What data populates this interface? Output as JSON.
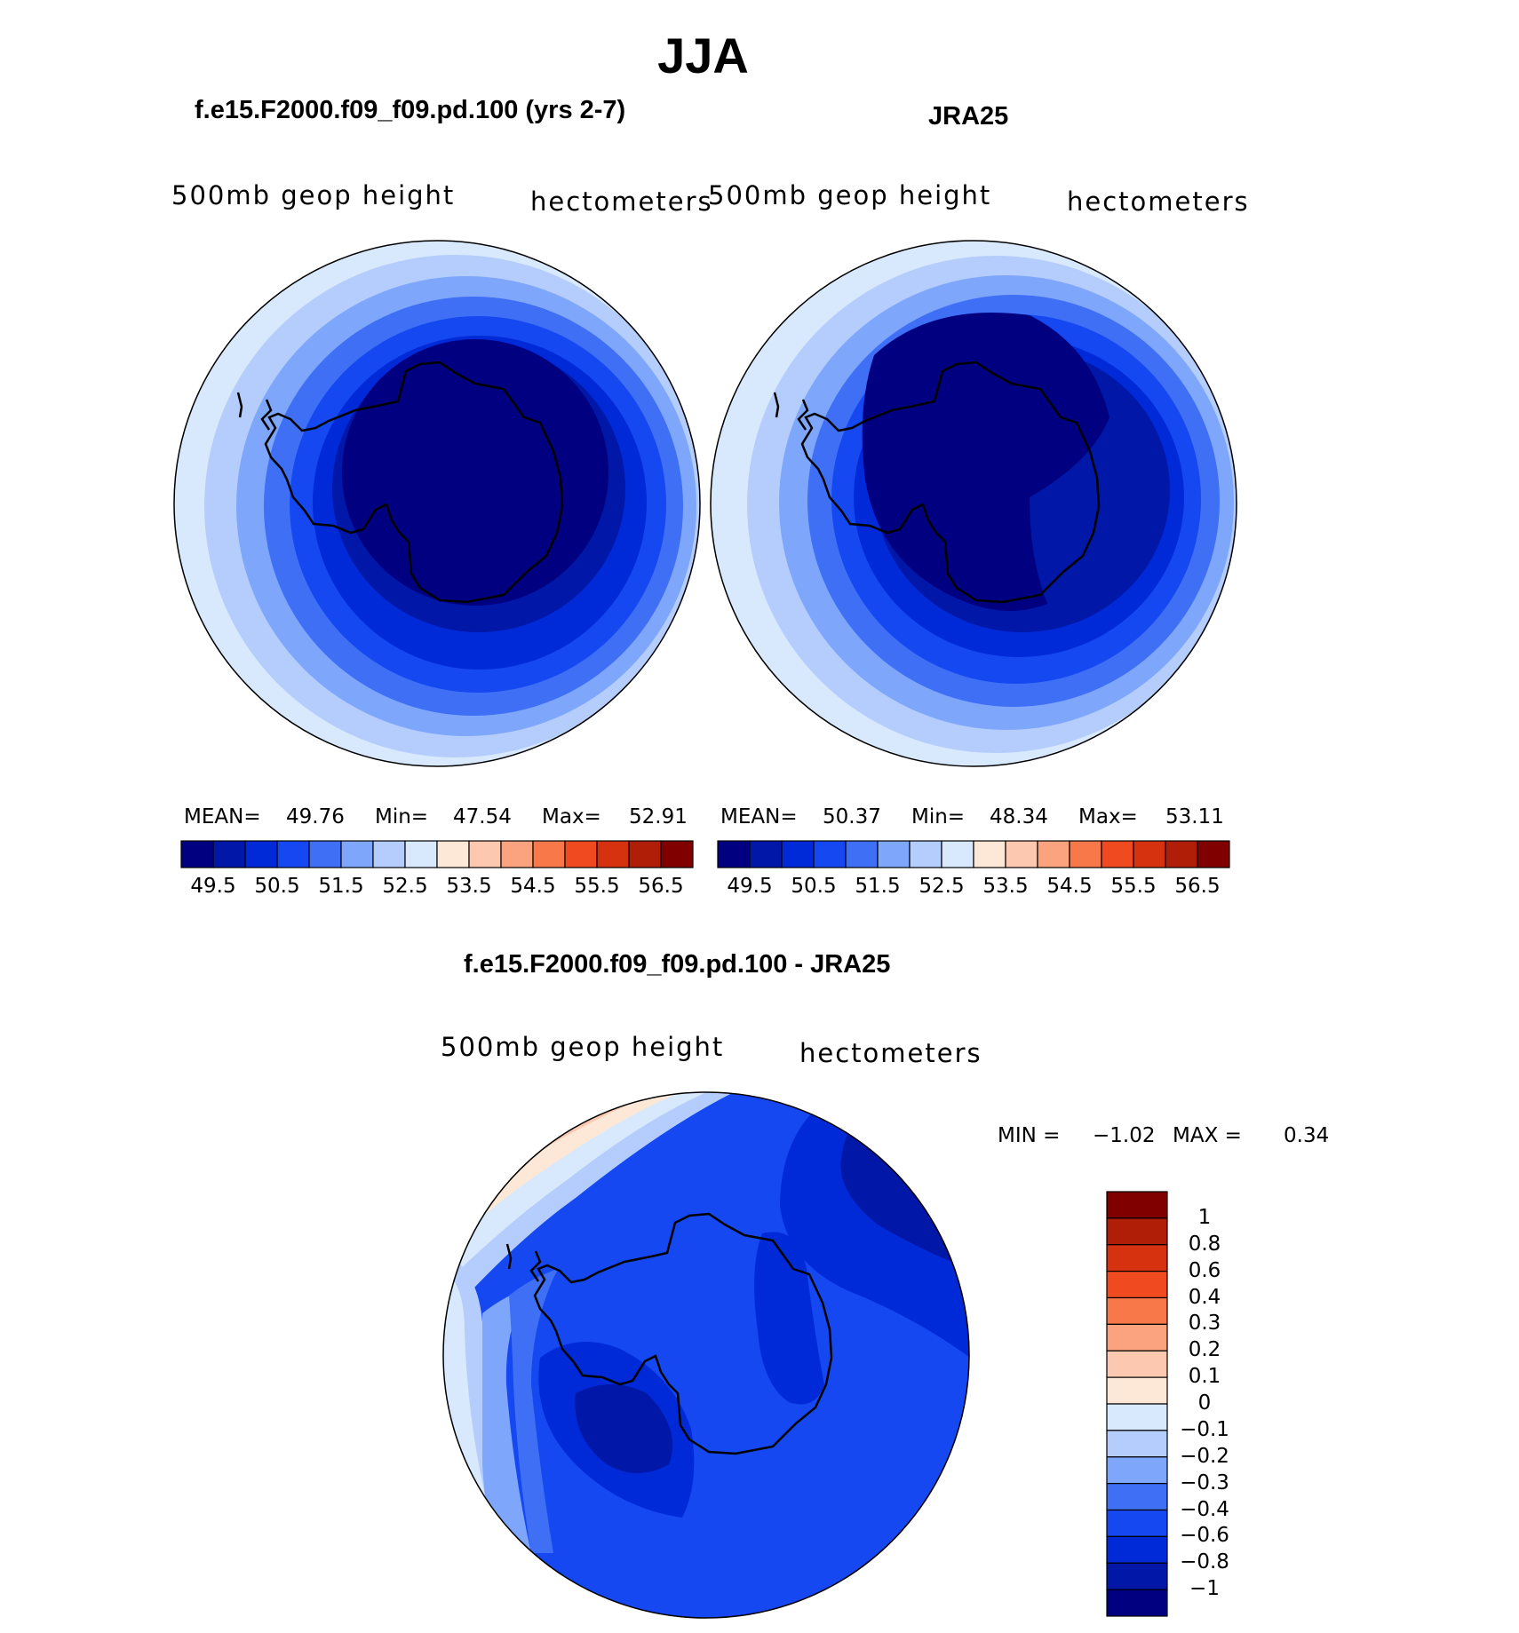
{
  "page_title": "JJA",
  "panels": [
    {
      "title": "f.e15.F2000.f09_f09.pd.100 (yrs 2-7)",
      "left_string": "500mb  geop  height",
      "right_string": "hectometers",
      "stats": {
        "mean_label": "MEAN=",
        "mean": "49.76",
        "min_label": "Min=",
        "min": "47.54",
        "max_label": "Max=",
        "max": "52.91"
      }
    },
    {
      "title": "JRA25",
      "left_string": "500mb  geop  height",
      "right_string": "hectometers",
      "stats": {
        "mean_label": "MEAN=",
        "mean": "50.37",
        "min_label": "Min=",
        "min": "48.34",
        "max_label": "Max=",
        "max": "53.11"
      }
    },
    {
      "title": "f.e15.F2000.f09_f09.pd.100 - JRA25",
      "left_string": "500mb  geop  height",
      "right_string": "hectometers",
      "stats": {
        "min_label": "MIN =",
        "min": "−1.02",
        "max_label": "MAX =",
        "max": "0.34"
      }
    }
  ],
  "colorbar_abs": {
    "labels": [
      "49.5",
      "50.5",
      "51.5",
      "52.5",
      "53.5",
      "54.5",
      "55.5",
      "56.5"
    ],
    "levels": [
      49.5,
      50,
      50.5,
      51,
      51.5,
      52,
      52.5,
      53,
      53.5,
      54,
      54.5,
      55,
      55.5,
      56,
      56.5
    ],
    "colors": [
      "#000080",
      "#0017a8",
      "#002ad8",
      "#1548f0",
      "#3e6ff5",
      "#7ea6fb",
      "#b4cdfc",
      "#d8e8fd",
      "#fde8d8",
      "#fcc8b0",
      "#fba27e",
      "#f8784a",
      "#f04a20",
      "#d63210",
      "#b01e08",
      "#800000"
    ]
  },
  "colorbar_diff": {
    "labels": [
      "1",
      "0.8",
      "0.6",
      "0.4",
      "0.3",
      "0.2",
      "0.1",
      "0",
      "−0.1",
      "−0.2",
      "−0.3",
      "−0.4",
      "−0.6",
      "−0.8",
      "−1"
    ],
    "colors_top_to_bottom": [
      "#800000",
      "#b01e08",
      "#d63210",
      "#f04a20",
      "#f8784a",
      "#fba27e",
      "#fcc8b0",
      "#fde8d8",
      "#d8e8fd",
      "#b4cdfc",
      "#7ea6fb",
      "#3e6ff5",
      "#1548f0",
      "#002ad8",
      "#0017a8",
      "#000080"
    ]
  },
  "chart_data": [
    {
      "type": "heatmap",
      "title": "f.e15.F2000.f09_f09.pd.100 (yrs 2-7)",
      "variable": "500mb geop height",
      "units": "hectometers",
      "projection": "south polar stereographic",
      "mean": 49.76,
      "min": 47.54,
      "max": 52.91,
      "contour_levels": [
        49.5,
        50,
        50.5,
        51,
        51.5,
        52,
        52.5,
        53,
        53.5,
        54,
        54.5,
        55,
        55.5,
        56,
        56.5
      ]
    },
    {
      "type": "heatmap",
      "title": "JRA25",
      "variable": "500mb geop height",
      "units": "hectometers",
      "projection": "south polar stereographic",
      "mean": 50.37,
      "min": 48.34,
      "max": 53.11,
      "contour_levels": [
        49.5,
        50,
        50.5,
        51,
        51.5,
        52,
        52.5,
        53,
        53.5,
        54,
        54.5,
        55,
        55.5,
        56,
        56.5
      ]
    },
    {
      "type": "heatmap",
      "title": "f.e15.F2000.f09_f09.pd.100 - JRA25",
      "variable": "500mb geop height",
      "units": "hectometers",
      "projection": "south polar stereographic",
      "min": -1.02,
      "max": 0.34,
      "contour_levels": [
        -1,
        -0.8,
        -0.6,
        -0.4,
        -0.3,
        -0.2,
        -0.1,
        0,
        0.1,
        0.2,
        0.3,
        0.4,
        0.6,
        0.8,
        1
      ]
    }
  ]
}
